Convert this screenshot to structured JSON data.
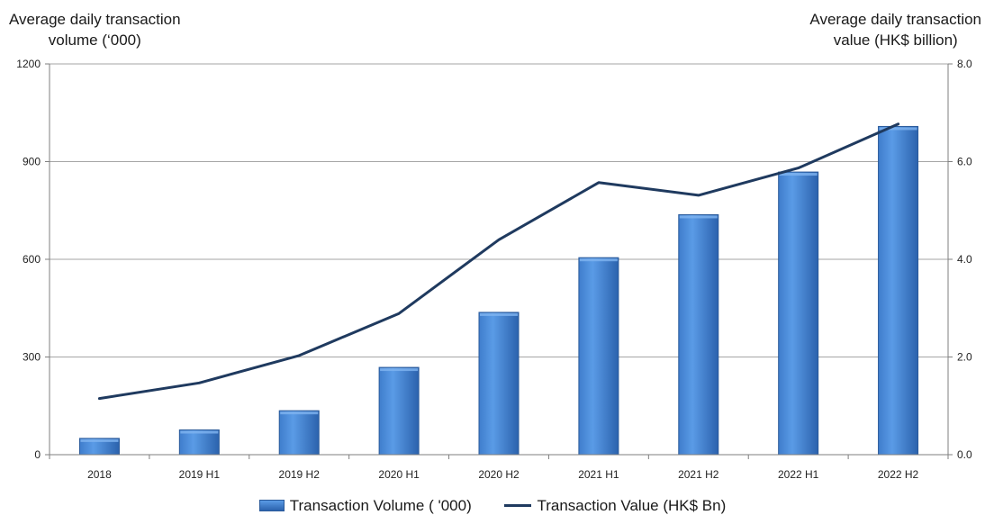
{
  "chart_data": {
    "type": "bar",
    "categories": [
      "2018",
      "2019 H1",
      "2019 H2",
      "2020 H1",
      "2020 H2",
      "2021 H1",
      "2021 H2",
      "2022 H1",
      "2022 H2"
    ],
    "series": [
      {
        "name": "Transaction Volume ( '000)",
        "type": "bar",
        "axis": "left",
        "values": [
          50,
          76,
          135,
          268,
          437,
          605,
          737,
          868,
          1008
        ]
      },
      {
        "name": "Transaction Value (HK$ Bn)",
        "type": "line",
        "axis": "right",
        "values": [
          1.15,
          1.47,
          2.03,
          2.89,
          4.4,
          5.57,
          5.31,
          5.87,
          6.77
        ]
      }
    ],
    "ylabel_left": [
      "Average daily transaction",
      "volume (‘000)"
    ],
    "ylabel_right": [
      "Average daily transaction",
      "value (HK$ billion)"
    ],
    "ylim_left": [
      0,
      1200
    ],
    "ylim_right": [
      0,
      8
    ],
    "yticks_left": [
      "0",
      "300",
      "600",
      "900",
      "1200"
    ],
    "yticks_right": [
      "0.0",
      "2.0",
      "4.0",
      "6.0",
      "8.0"
    ],
    "grid": true,
    "legend_position": "bottom",
    "colors": {
      "bar_top": "#5a9be6",
      "bar_bottom": "#2b62ad",
      "line": "#1f3a5f",
      "grid": "#a6a6a6"
    }
  }
}
